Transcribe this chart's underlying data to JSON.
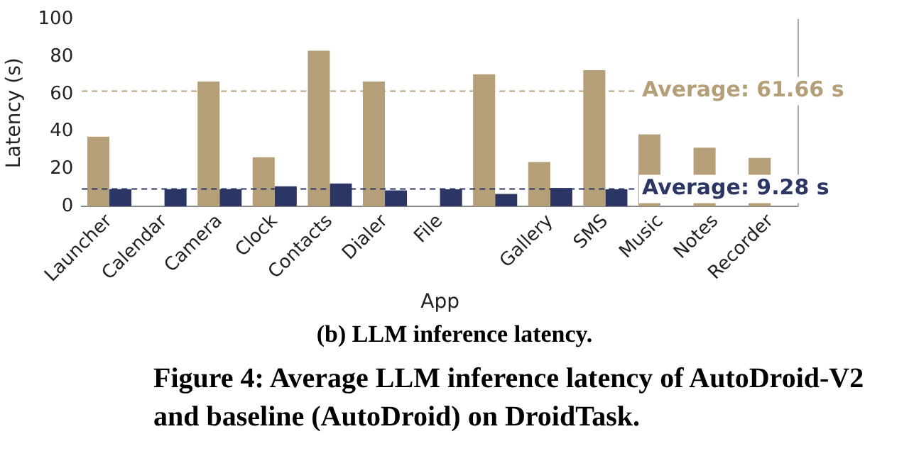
{
  "chart_data": {
    "type": "bar",
    "xlabel": "App",
    "ylabel": "Latency (s)",
    "categories": [
      "Launcher",
      "Calendar",
      "Camera",
      "Clock",
      "Contacts",
      "Dialer",
      "File",
      null,
      "Gallery",
      "SMS",
      "Music",
      "Notes",
      "Recorder"
    ],
    "series": [
      {
        "color": "#b59f78",
        "values": [
          37.3,
          null,
          66.8,
          26.3,
          83.3,
          66.8,
          null,
          70.7,
          23.7,
          72.9,
          38.5,
          31.4,
          25.9
        ]
      },
      {
        "color": "#2b3664",
        "values": [
          9.2,
          9.2,
          9.2,
          10.7,
          12.2,
          8.5,
          9.1,
          6.6,
          9.8,
          9.1,
          null,
          null,
          null
        ]
      }
    ],
    "ylim": [
      0,
      100
    ],
    "yticks": [
      0,
      20,
      40,
      60,
      80,
      100
    ],
    "grid": false,
    "legend": false,
    "ref_lines": [
      {
        "axis": "y",
        "value": 61.66,
        "label": "Average: 61.66 s",
        "color": "#b59f78",
        "line_style": "dashed"
      },
      {
        "axis": "y",
        "value": 9.28,
        "label": "Average: 9.28 s",
        "color": "#2b3664",
        "line_style": "dashed"
      }
    ],
    "annotations": [
      "(b) LLM inference latency.",
      "Figure 4: Average LLM inference latency of AutoDroid-V2 and baseline (AutoDroid) on DroidTask."
    ]
  }
}
